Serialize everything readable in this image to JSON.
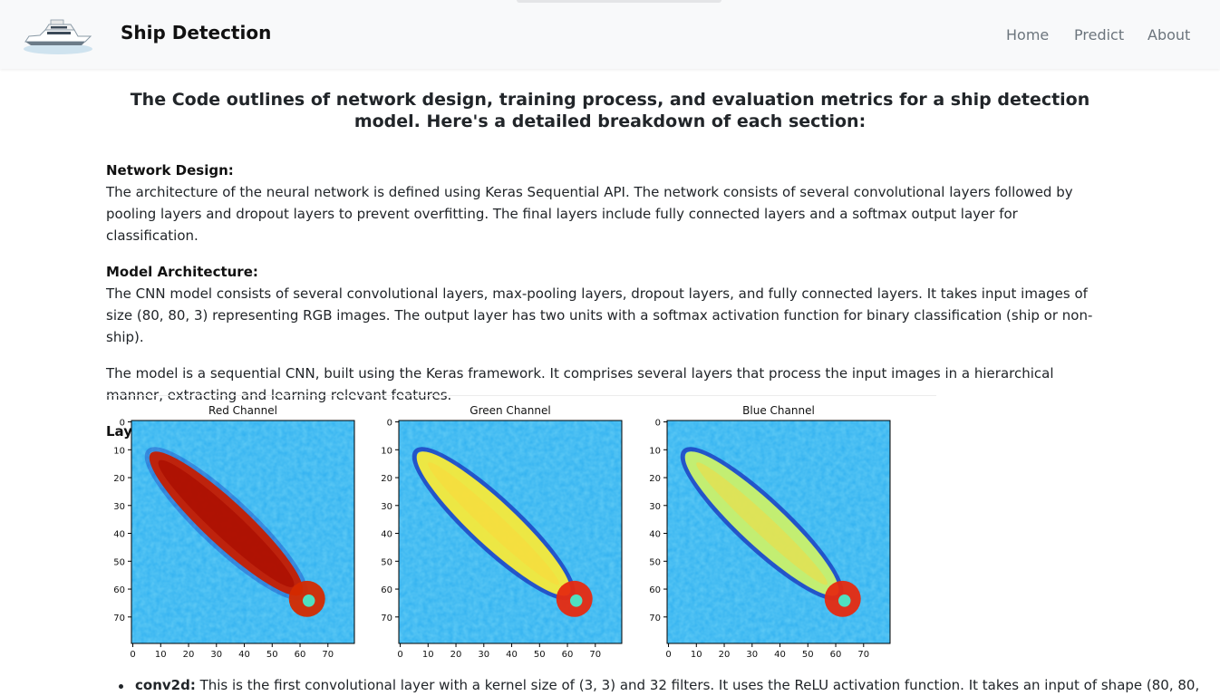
{
  "navbar": {
    "brand": "Ship Detection",
    "links": [
      "Home",
      "Predict",
      "About"
    ]
  },
  "main": {
    "heading": "The Code outlines of network design, training process, and evaluation metrics for a ship detection model. Here's a detailed breakdown of each section:",
    "network_design": {
      "label": "Network Design:",
      "text": "The architecture of the neural network is defined using Keras Sequential API. The network consists of several convolutional layers followed by pooling layers and dropout layers to prevent overfitting. The final layers include fully connected layers and a softmax output layer for classification."
    },
    "model_architecture": {
      "label": "Model Architecture:",
      "text": "The CNN model consists of several convolutional layers, max-pooling layers, dropout layers, and fully connected layers. It takes input images of size (80, 80, 3) representing RGB images. The output layer has two units with a softmax activation function for binary classification (ship or non-ship)."
    },
    "sequential_text": "The model is a sequential CNN, built using the Keras framework. It comprises several layers that process the input images in a hierarchical manner, extracting and learning relevant features.",
    "layer_details_label": "Layer Details:",
    "bullet": {
      "term": "conv2d:",
      "text": " This is the first convolutional layer with a kernel size of (3, 3) and 32 filters. It uses the ReLU activation function. It takes an input of shape (80, 80,"
    }
  },
  "channel_figure": {
    "panels": [
      {
        "title": "Red Channel"
      },
      {
        "title": "Green Channel"
      },
      {
        "title": "Blue Channel"
      }
    ],
    "y_ticks": [
      "0",
      "10",
      "20",
      "30",
      "40",
      "50",
      "60",
      "70"
    ],
    "x_ticks": [
      "0",
      "10",
      "20",
      "30",
      "40",
      "50",
      "60",
      "70"
    ],
    "colors": {
      "background": "#2fb0f0",
      "red_hull": "#c41a00",
      "green_hull": "#f5e93a",
      "blue_hull": "#c9f06a",
      "edge_dark": "#1428b8"
    }
  }
}
